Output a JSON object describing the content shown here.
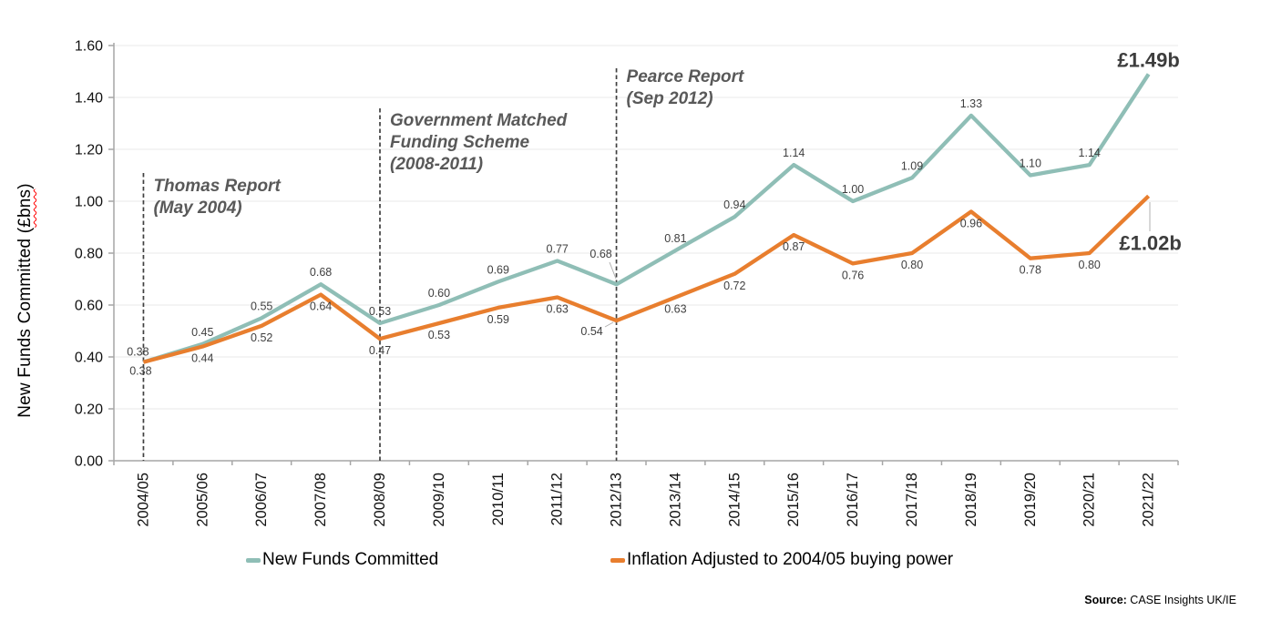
{
  "chart_data": {
    "type": "line",
    "ylabel_prefix": "New Funds Committed (",
    "ylabel_unit": "£bns",
    "ylabel_suffix": ")",
    "categories": [
      "2004/05",
      "2005/06",
      "2006/07",
      "2007/08",
      "2008/09",
      "2009/10",
      "2010/11",
      "2011/12",
      "2012/13",
      "2013/14",
      "2014/15",
      "2015/16",
      "2016/17",
      "2017/18",
      "2018/19",
      "2019/20",
      "2020/21",
      "2021/22"
    ],
    "series": [
      {
        "name": "New Funds Committed",
        "color": "#8FBEB6",
        "values": [
          0.38,
          0.45,
          0.55,
          0.68,
          0.53,
          0.6,
          0.69,
          0.77,
          0.68,
          0.81,
          0.94,
          1.14,
          1.0,
          1.09,
          1.33,
          1.1,
          1.14,
          1.49
        ],
        "end_label": "£1.49b"
      },
      {
        "name": "Inflation Adjusted to 2004/05 buying power",
        "color": "#E87E2E",
        "values": [
          0.38,
          0.44,
          0.52,
          0.64,
          0.47,
          0.53,
          0.59,
          0.63,
          0.54,
          0.63,
          0.72,
          0.87,
          0.76,
          0.8,
          0.96,
          0.78,
          0.8,
          1.02
        ],
        "end_label": "£1.02b"
      }
    ],
    "ylim": [
      0,
      1.6
    ],
    "ytick_labels": [
      "0.00",
      "0.20",
      "0.40",
      "0.60",
      "0.80",
      "1.00",
      "1.20",
      "1.40",
      "1.60"
    ],
    "grid": "horizontal",
    "legend_position": "bottom",
    "annotations": [
      {
        "label_lines": [
          "Thomas Report",
          "(May 2004)"
        ],
        "category": "2004/05"
      },
      {
        "label_lines": [
          "Government Matched",
          "Funding Scheme",
          "(2008-2011)"
        ],
        "category": "2008/09"
      },
      {
        "label_lines": [
          "Pearce Report",
          "(Sep 2012)"
        ],
        "category": "2012/13"
      }
    ],
    "source_label": "Source:",
    "source_text": " CASE Insights UK/IE"
  }
}
